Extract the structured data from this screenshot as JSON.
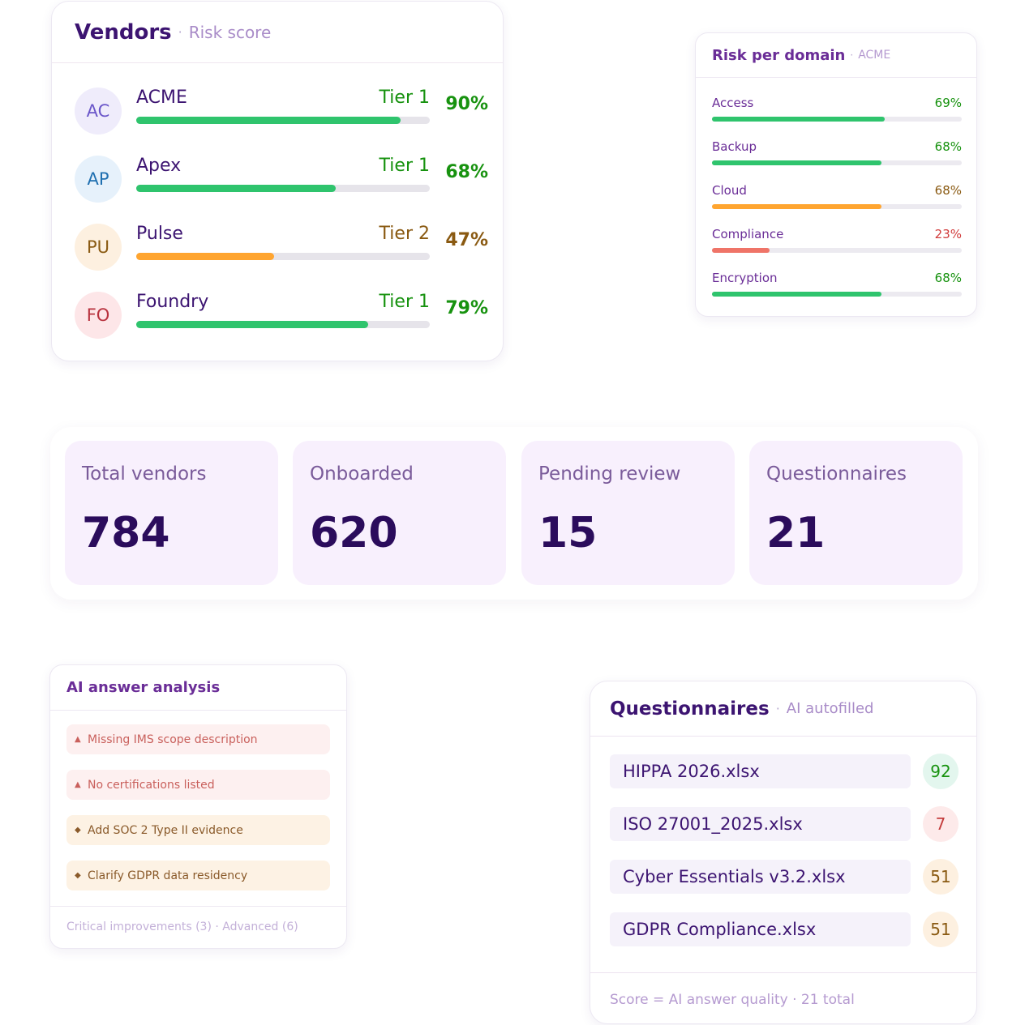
{
  "vendors_card": {
    "title": "Vendors",
    "subtitle": "Risk score",
    "vendors": [
      {
        "initials": "AC",
        "name": "ACME",
        "tier": "Tier 1",
        "score": 90,
        "score_label": "90%",
        "status": "good"
      },
      {
        "initials": "AP",
        "name": "Apex",
        "tier": "Tier 1",
        "score": 68,
        "score_label": "68%",
        "status": "good"
      },
      {
        "initials": "PU",
        "name": "Pulse",
        "tier": "Tier 2",
        "score": 47,
        "score_label": "47%",
        "status": "warn"
      },
      {
        "initials": "FO",
        "name": "Foundry",
        "tier": "Tier 1",
        "score": 79,
        "score_label": "79%",
        "status": "good"
      }
    ]
  },
  "risk_card": {
    "title": "Risk per domain",
    "subtitle": "ACME",
    "domains": [
      {
        "label": "Access",
        "value": 69,
        "value_label": "69%",
        "status": "good"
      },
      {
        "label": "Backup",
        "value": 68,
        "value_label": "68%",
        "status": "good"
      },
      {
        "label": "Cloud",
        "value": 68,
        "value_label": "68%",
        "status": "warn"
      },
      {
        "label": "Compliance",
        "value": 23,
        "value_label": "23%",
        "status": "bad"
      },
      {
        "label": "Encryption",
        "value": 68,
        "value_label": "68%",
        "status": "good"
      }
    ]
  },
  "stats": [
    {
      "label": "Total vendors",
      "value": "784"
    },
    {
      "label": "Onboarded",
      "value": "620"
    },
    {
      "label": "Pending review",
      "value": "15"
    },
    {
      "label": "Questionnaires",
      "value": "21"
    }
  ],
  "ai_card": {
    "title": "AI answer analysis",
    "issues": [
      {
        "icon": "triangle-icon",
        "text": "Missing IMS scope description",
        "severity": "critical"
      },
      {
        "icon": "triangle-icon",
        "text": "No certifications listed",
        "severity": "critical"
      },
      {
        "icon": "diamond-icon",
        "text": "Add SOC 2 Type II evidence",
        "severity": "advanced"
      },
      {
        "icon": "diamond-icon",
        "text": "Clarify GDPR data residency",
        "severity": "advanced"
      }
    ],
    "footer": "Critical improvements (3) · Advanced (6)"
  },
  "quest_card": {
    "title": "Questionnaires",
    "subtitle": "AI autofilled",
    "files": [
      {
        "name": "HIPPA 2026.xlsx",
        "score": "92",
        "status": "good"
      },
      {
        "name": "ISO 27001_2025.xlsx",
        "score": "7",
        "status": "bad"
      },
      {
        "name": "Cyber Essentials v3.2.xlsx",
        "score": "51",
        "status": "warn"
      },
      {
        "name": "GDPR Compliance.xlsx",
        "score": "51",
        "status": "warn"
      }
    ],
    "footer": "Score = AI answer quality · 21 total"
  },
  "colors": {
    "good": "#2fc46d",
    "good_text": "#17920f",
    "warn": "#ffa530",
    "warn_text": "#8a5a12",
    "bad": "#ef7468",
    "bad_text": "#d13b3b"
  }
}
